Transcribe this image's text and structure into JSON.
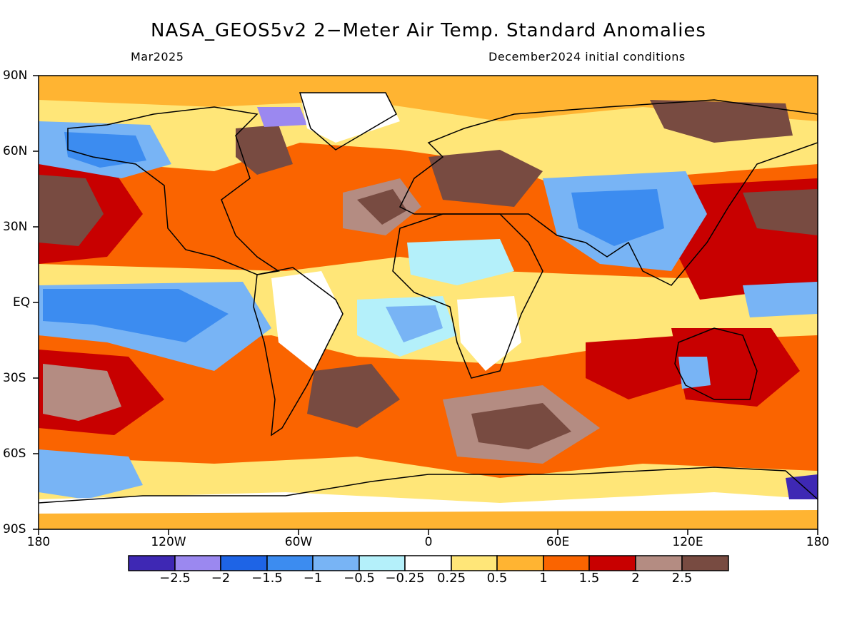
{
  "title": "NASA_GEOS5v2 2−Meter Air Temp. Standard Anomalies",
  "subtitle_left": "Mar2025",
  "subtitle_right": "December2024 initial conditions",
  "lat_labels": [
    "90N",
    "60N",
    "30N",
    "EQ",
    "30S",
    "60S",
    "90S"
  ],
  "lon_labels": [
    "180",
    "120W",
    "60W",
    "0",
    "60E",
    "120E",
    "180"
  ],
  "colorbar": {
    "labels": [
      "−2.5",
      "−2",
      "−1.5",
      "−1",
      "−0.5",
      "−0.25",
      "0.25",
      "0.5",
      "1",
      "1.5",
      "2",
      "2.5"
    ],
    "colors": [
      "#3e28b4",
      "#9b88f0",
      "#1e64e6",
      "#3c8cf0",
      "#78b4f5",
      "#b4f0fa",
      "#ffffff",
      "#ffe678",
      "#ffb432",
      "#fa6400",
      "#c80000",
      "#b48c82",
      "#784b41"
    ]
  },
  "map": {
    "background_color": "#ffe678",
    "regions": [
      {
        "name": "n-pacific-warm",
        "color": "#784b41"
      },
      {
        "name": "tropical-pacific-cold",
        "color": "#78b4f5"
      },
      {
        "name": "n-atlantic-warm",
        "color": "#784b41"
      },
      {
        "name": "asia-cold",
        "color": "#78b4f5"
      },
      {
        "name": "siberia-warm",
        "color": "#784b41"
      },
      {
        "name": "southern-ocean-warm",
        "color": "#b48c82"
      }
    ]
  }
}
